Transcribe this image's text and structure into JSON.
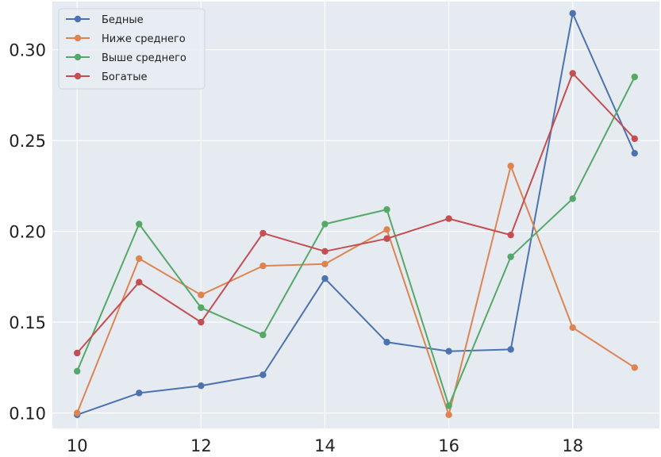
{
  "chart_data": {
    "type": "line",
    "title": "",
    "xlabel": "",
    "ylabel": "",
    "xlim": [
      9.6,
      19.4
    ],
    "ylim": [
      0.0915,
      0.3265
    ],
    "x_ticks": [
      10,
      12,
      14,
      16,
      18
    ],
    "y_ticks": [
      0.1,
      0.15,
      0.2,
      0.25,
      0.3
    ],
    "x_tick_labels": [
      "10",
      "12",
      "14",
      "16",
      "18"
    ],
    "y_tick_labels": [
      "0.10",
      "0.15",
      "0.20",
      "0.25",
      "0.30"
    ],
    "grid": true,
    "legend_position": "top-left",
    "background_color": "#e5ebf1",
    "grid_color": "#ffffff",
    "x": [
      10,
      11,
      12,
      13,
      14,
      15,
      16,
      17,
      18,
      19
    ],
    "series": [
      {
        "name": "Бедные",
        "color": "#4c72b0",
        "values": [
          0.099,
          0.111,
          0.115,
          0.121,
          0.174,
          0.139,
          0.134,
          0.135,
          0.32,
          0.243
        ]
      },
      {
        "name": "Ниже среднего",
        "color": "#dd8452",
        "values": [
          0.1,
          0.185,
          0.165,
          0.181,
          0.182,
          0.201,
          0.099,
          0.236,
          0.147,
          0.125
        ]
      },
      {
        "name": "Выше среднего",
        "color": "#55a868",
        "values": [
          0.123,
          0.204,
          0.158,
          0.143,
          0.204,
          0.212,
          0.104,
          0.186,
          0.218,
          0.285
        ]
      },
      {
        "name": "Богатые",
        "color": "#c44e52",
        "values": [
          0.133,
          0.172,
          0.15,
          0.199,
          0.189,
          0.196,
          0.207,
          0.198,
          0.287,
          0.251
        ]
      }
    ]
  }
}
